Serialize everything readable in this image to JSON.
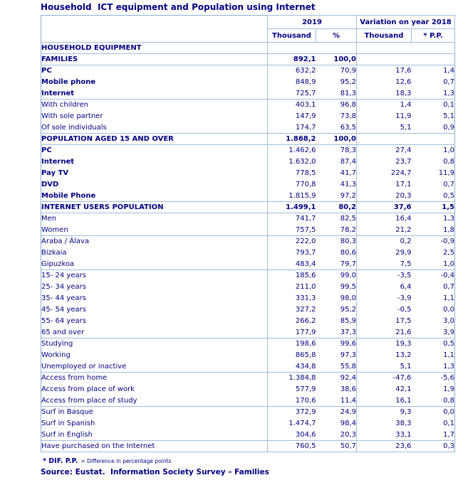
{
  "title": "Household  ICT equipment and Population using Internet",
  "colors": {
    "text_navy": "#000080",
    "grid_light_blue": "#9cbfdc"
  },
  "chart_data": {
    "type": "table",
    "title": "Household  ICT equipment and Population using Internet",
    "column_groups": [
      "2019",
      "Variation on year 2018"
    ],
    "columns": [
      "Thousand",
      "%",
      "Thousand",
      "* P.P."
    ],
    "rows": [
      {
        "label": "HOUSEHOLD EQUIPMENT",
        "values": [
          "",
          "",
          "",
          ""
        ],
        "indent": "0",
        "bold": true,
        "values_bold": false,
        "group_end": true
      },
      {
        "label": "FAMILIES",
        "values": [
          "892,1",
          "100,0",
          "",
          ""
        ],
        "indent": "0",
        "bold": true,
        "values_bold": true,
        "group_end": true
      },
      {
        "label": "PC",
        "values": [
          "632,2",
          "70,9",
          "17,6",
          "1,4"
        ],
        "indent": "1",
        "bold": true,
        "values_bold": false,
        "group_end": false
      },
      {
        "label": "Mobile phone",
        "values": [
          "848,9",
          "95,2",
          "12,6",
          "0,7"
        ],
        "indent": "1",
        "bold": true,
        "values_bold": false,
        "group_end": false
      },
      {
        "label": "Internet",
        "values": [
          "725,7",
          "81,3",
          "18,3",
          "1,3"
        ],
        "indent": "1",
        "bold": true,
        "values_bold": false,
        "group_end": true
      },
      {
        "label": "With children",
        "values": [
          "403,1",
          "96,8",
          "1,4",
          "0,1"
        ],
        "indent": "1",
        "bold": false,
        "values_bold": false,
        "group_end": false
      },
      {
        "label": "With sole partner",
        "values": [
          "147,9",
          "73,8",
          "11,9",
          "5,1"
        ],
        "indent": "1",
        "bold": false,
        "values_bold": false,
        "group_end": false
      },
      {
        "label": "Of sole individuals",
        "values": [
          "174,7",
          "63,5",
          "5,1",
          "0,9"
        ],
        "indent": "1",
        "bold": false,
        "values_bold": false,
        "group_end": true
      },
      {
        "label": "POPULATION AGED 15 AND OVER",
        "values": [
          "1.868,2",
          "100,0",
          "",
          ""
        ],
        "indent": "0",
        "bold": true,
        "values_bold": true,
        "group_end": true
      },
      {
        "label": "PC",
        "values": [
          "1.462,6",
          "78,3",
          "27,4",
          "1,0"
        ],
        "indent": "2",
        "bold": true,
        "values_bold": false,
        "group_end": false
      },
      {
        "label": "Internet",
        "values": [
          "1.632,0",
          "87,4",
          "23,7",
          "0,8"
        ],
        "indent": "2",
        "bold": true,
        "values_bold": false,
        "group_end": false
      },
      {
        "label": "Pay TV",
        "values": [
          "778,5",
          "41,7",
          "224,7",
          "11,9"
        ],
        "indent": "2",
        "bold": true,
        "values_bold": false,
        "group_end": false
      },
      {
        "label": "DVD",
        "values": [
          "770,8",
          "41,3",
          "17,1",
          "0,7"
        ],
        "indent": "2",
        "bold": true,
        "values_bold": false,
        "group_end": false
      },
      {
        "label": "Mobile Phone",
        "values": [
          "1.815,9",
          "97,2",
          "20,3",
          "0,5"
        ],
        "indent": "2",
        "bold": true,
        "values_bold": false,
        "group_end": true
      },
      {
        "label": "INTERNET USERS POPULATION",
        "values": [
          "1.499,1",
          "80,2",
          "37,6",
          "1,5"
        ],
        "indent": "1b",
        "bold": true,
        "values_bold": true,
        "group_end": true
      },
      {
        "label": "Men",
        "values": [
          "741,7",
          "82,5",
          "16,4",
          "1,3"
        ],
        "indent": "2",
        "bold": false,
        "values_bold": false,
        "group_end": false
      },
      {
        "label": "Women",
        "values": [
          "757,5",
          "78,2",
          "21,2",
          "1,8"
        ],
        "indent": "2",
        "bold": false,
        "values_bold": false,
        "group_end": true
      },
      {
        "label": "Araba / Álava",
        "values": [
          "222,0",
          "80,3",
          "0,2",
          "-0,9"
        ],
        "indent": "2",
        "bold": false,
        "values_bold": false,
        "group_end": false
      },
      {
        "label": "Bizkaia",
        "values": [
          "793,7",
          "80,6",
          "29,9",
          "2,5"
        ],
        "indent": "2",
        "bold": false,
        "values_bold": false,
        "group_end": false
      },
      {
        "label": "Gipuzkoa",
        "values": [
          "483,4",
          "79,7",
          "7,5",
          "1,0"
        ],
        "indent": "2",
        "bold": false,
        "values_bold": false,
        "group_end": true
      },
      {
        "label": "15- 24 years",
        "values": [
          "185,6",
          "99,0",
          "-3,5",
          "-0,4"
        ],
        "indent": "2",
        "bold": false,
        "values_bold": false,
        "group_end": false
      },
      {
        "label": "25- 34 years",
        "values": [
          "211,0",
          "99,5",
          "6,4",
          "0,7"
        ],
        "indent": "2",
        "bold": false,
        "values_bold": false,
        "group_end": false
      },
      {
        "label": "35- 44 years",
        "values": [
          "331,3",
          "98,0",
          "-3,9",
          "1,1"
        ],
        "indent": "2",
        "bold": false,
        "values_bold": false,
        "group_end": false
      },
      {
        "label": "45- 54 years",
        "values": [
          "327,2",
          "95,2",
          "-0,5",
          "0,0"
        ],
        "indent": "2",
        "bold": false,
        "values_bold": false,
        "group_end": false
      },
      {
        "label": "55- 64 years",
        "values": [
          "266,2",
          "85,9",
          "17,5",
          "3,0"
        ],
        "indent": "2",
        "bold": false,
        "values_bold": false,
        "group_end": false
      },
      {
        "label": "65 and over",
        "values": [
          "177,9",
          "37,3",
          "21,6",
          "3,9"
        ],
        "indent": "2",
        "bold": false,
        "values_bold": false,
        "group_end": true
      },
      {
        "label": "Studying",
        "values": [
          "198,6",
          "99,6",
          "19,3",
          "0,5"
        ],
        "indent": "2",
        "bold": false,
        "values_bold": false,
        "group_end": false
      },
      {
        "label": "Working",
        "values": [
          "865,8",
          "97,3",
          "13,2",
          "1,1"
        ],
        "indent": "2",
        "bold": false,
        "values_bold": false,
        "group_end": false
      },
      {
        "label": "Unemployed or inactive",
        "values": [
          "434,8",
          "55,8",
          "5,1",
          "1,3"
        ],
        "indent": "2",
        "bold": false,
        "values_bold": false,
        "group_end": true
      },
      {
        "label": "Access from home",
        "values": [
          "1.384,8",
          "92,4",
          "-47,6",
          "-5,6"
        ],
        "indent": "2",
        "bold": false,
        "values_bold": false,
        "group_end": false
      },
      {
        "label": "Access from place of work",
        "values": [
          "577,9",
          "38,6",
          "42,1",
          "1,9"
        ],
        "indent": "2",
        "bold": false,
        "values_bold": false,
        "group_end": false
      },
      {
        "label": "Access from place of study",
        "values": [
          "170,6",
          "11,4",
          "16,1",
          "0,8"
        ],
        "indent": "2",
        "bold": false,
        "values_bold": false,
        "group_end": true
      },
      {
        "label": "Surf in Basque",
        "values": [
          "372,9",
          "24,9",
          "9,3",
          "0,0"
        ],
        "indent": "2",
        "bold": false,
        "values_bold": false,
        "group_end": false
      },
      {
        "label": "Surf in Spanish",
        "values": [
          "1.474,7",
          "98,4",
          "38,3",
          "0,1"
        ],
        "indent": "2",
        "bold": false,
        "values_bold": false,
        "group_end": false
      },
      {
        "label": "Surf in English",
        "values": [
          "304,6",
          "20,3",
          "33,1",
          "1,7"
        ],
        "indent": "2",
        "bold": false,
        "values_bold": false,
        "group_end": true
      },
      {
        "label": "Have purchased on the Internet",
        "values": [
          "760,5",
          "50,7",
          "23,6",
          "0,3"
        ],
        "indent": "2",
        "bold": false,
        "values_bold": false,
        "group_end": true
      }
    ]
  },
  "footnote": {
    "marker": "* DIF. P.P.",
    "text": "= Difference in percentage points"
  },
  "source": "Source: Eustat.  Information Society Survey – Families"
}
